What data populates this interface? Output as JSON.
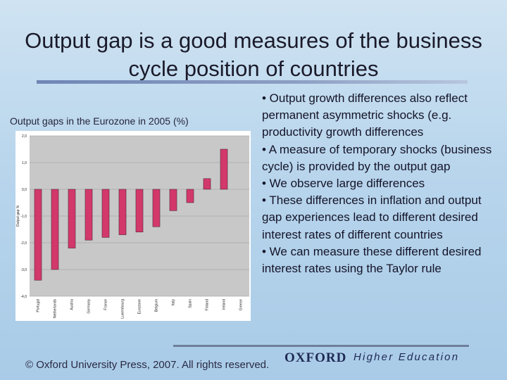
{
  "slide": {
    "title": "Output gap is a good measures of the business cycle position of countries",
    "chart_caption": "Output gaps in the Eurozone in 2005 (%)",
    "bullets": [
      "• Output growth differences also reflect permanent asymmetric shocks (e.g. productivity growth differences",
      "• A measure of temporary shocks (business cycle) is provided by the output gap",
      "• We observe large differences",
      "• These differences in inflation and output gap experiences lead to different desired interest rates of different countries",
      "• We can measure these different desired interest rates using the Taylor rule"
    ]
  },
  "footer": {
    "copyright": "© Oxford University Press, 2007. All rights reserved.",
    "brand": "OXFORD",
    "brand_sub": "Higher Education"
  },
  "colors": {
    "bar": "#d2386a",
    "bar_stroke": "#3a2030",
    "plot_bg": "#c8c8c8",
    "gridline": "#9a9a9a"
  },
  "chart_data": {
    "type": "bar",
    "title": "",
    "xlabel": "",
    "ylabel": "Output gap %",
    "ylim": [
      -4.0,
      2.0
    ],
    "yticks": [
      "2,0",
      "1,0",
      "0,0",
      "-1,0",
      "-2,0",
      "-3,0",
      "-4,0"
    ],
    "ytick_values": [
      2,
      1,
      0,
      -1,
      -2,
      -3,
      -4
    ],
    "grid": true,
    "categories": [
      "Portugal",
      "Netherlands",
      "Austria",
      "Germany",
      "France",
      "Luxembourg",
      "Eurozone",
      "Belgium",
      "Italy",
      "Spain",
      "Finland",
      "Ireland",
      "Greece"
    ],
    "values": [
      -3.4,
      -3.0,
      -2.2,
      -1.9,
      -1.8,
      -1.7,
      -1.6,
      -1.4,
      -0.8,
      -0.5,
      0.4,
      1.5,
      null
    ]
  }
}
